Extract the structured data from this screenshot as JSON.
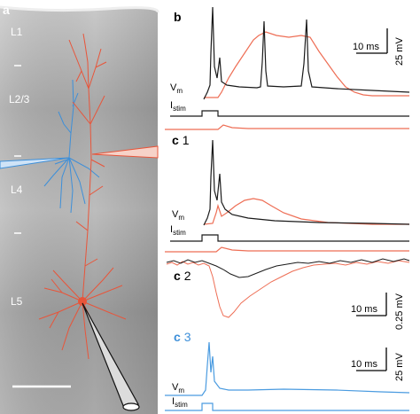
{
  "panel_labels": {
    "a": "a",
    "b": "b",
    "c1_letter": "c",
    "c1_num": "1",
    "c2_letter": "c",
    "c2_num": "2",
    "c3_letter": "c",
    "c3_num": "3"
  },
  "layer_labels": {
    "l1": "L1",
    "l23": "L2/3",
    "l4": "L4",
    "l5": "L5"
  },
  "scale_bars": {
    "b_time": "10 ms",
    "b_volt": "25 mV",
    "c2_time": "10 ms",
    "c2_volt": "0.25 mV",
    "c3_time": "10 ms",
    "c3_volt": "25 mV"
  },
  "trace_labels": {
    "vm_main": "V",
    "vm_sub": "m",
    "istim_main": "I",
    "istim_sub": "stim"
  },
  "colors": {
    "red_neuron": "#e8553a",
    "blue_neuron": "#3d8fd9",
    "black_trace": "#1a1a1a",
    "red_trace": "#ee6e55",
    "blue_trace": "#4a9be0"
  }
}
